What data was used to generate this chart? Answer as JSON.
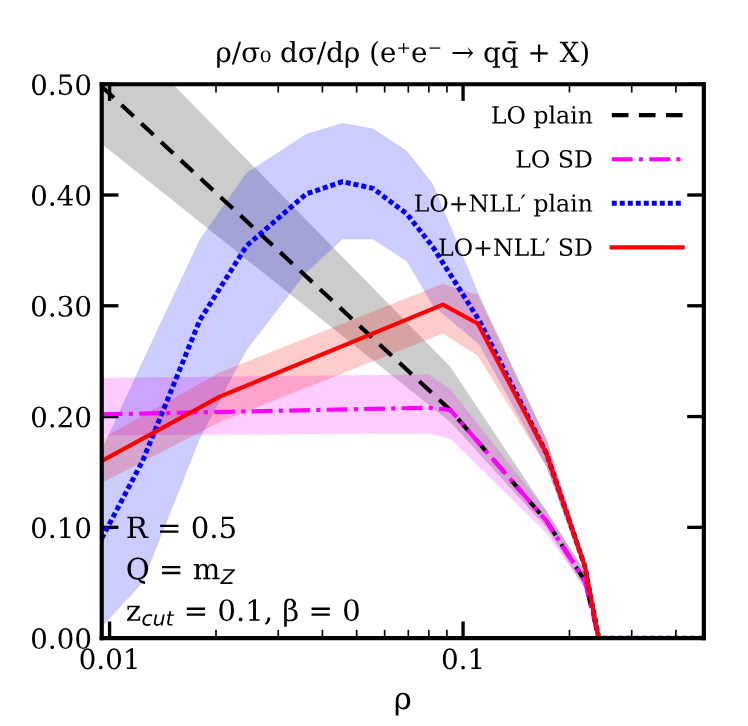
{
  "chart_data": {
    "type": "line",
    "title": "ρ/σ₀ dσ/dρ (e⁺e⁻ → qq̄ + X)",
    "xlabel": "ρ",
    "log": "x",
    "xlim": [
      0.0095,
      0.48
    ],
    "xticks": [
      0.01,
      0.1
    ],
    "ylim": [
      0,
      0.5
    ],
    "yticks": [
      {
        "value": 0,
        "label": "0.00"
      },
      {
        "value": 0.1,
        "label": "0.10"
      },
      {
        "value": 0.2,
        "label": "0.20"
      },
      {
        "value": 0.3,
        "label": "0.30"
      },
      {
        "value": 0.4,
        "label": "0.40"
      },
      {
        "value": 0.5,
        "label": "0.50"
      }
    ],
    "grid": false,
    "legend": "top right",
    "annotations": [
      "R = 0.5",
      "Q = m$_{Z}$",
      "z$_{cut}$ = 0.1, β = 0"
    ],
    "series": [
      {
        "name": "LO plain",
        "color": "#000000",
        "line_style": "dashed",
        "x": [
          0.0095,
          0.0151,
          0.092,
          0.172,
          0.221,
          0.242,
          0.48
        ],
        "values": [
          0.498,
          0.438,
          0.206,
          0.106,
          0.052,
          0,
          0
        ],
        "lower": [
          0.446,
          0.395,
          0.195,
          0.1,
          0.045,
          0,
          0
        ],
        "upper": [
          0.5,
          0.5,
          0.245,
          0.115,
          0.06,
          0,
          0
        ]
      },
      {
        "name": "LO SD",
        "color": "#ff00ff",
        "line_style": "dashdot",
        "x": [
          0.0095,
          0.08,
          0.092,
          0.172,
          0.221,
          0.242,
          0.48
        ],
        "values": [
          0.202,
          0.208,
          0.206,
          0.106,
          0.052,
          0,
          0
        ],
        "lower": [
          0.183,
          0.185,
          0.18,
          0.095,
          0.045,
          0,
          0
        ],
        "upper": [
          0.235,
          0.238,
          0.225,
          0.115,
          0.06,
          0,
          0
        ]
      },
      {
        "name": "LO+NLL′ plain",
        "color": "#0000ff",
        "line_style": "dotted",
        "x": [
          0.0095,
          0.0124,
          0.018,
          0.0244,
          0.036,
          0.0456,
          0.0556,
          0.0693,
          0.0822,
          0.111,
          0.172,
          0.221,
          0.242,
          0.48
        ],
        "values": [
          0.09,
          0.16,
          0.287,
          0.354,
          0.401,
          0.412,
          0.406,
          0.383,
          0.353,
          0.287,
          0.167,
          0.065,
          0,
          0
        ],
        "lower": [
          0.01,
          0.05,
          0.18,
          0.26,
          0.33,
          0.36,
          0.36,
          0.34,
          0.3,
          0.265,
          0.155,
          0.06,
          0,
          0
        ],
        "upper": [
          0.17,
          0.25,
          0.36,
          0.42,
          0.455,
          0.465,
          0.46,
          0.44,
          0.41,
          0.31,
          0.18,
          0.07,
          0,
          0
        ]
      },
      {
        "name": "LO+NLL′ SD",
        "color": "#ff0000",
        "line_style": "solid",
        "x": [
          0.0095,
          0.0205,
          0.0877,
          0.11,
          0.172,
          0.221,
          0.242,
          0.48
        ],
        "values": [
          0.16,
          0.218,
          0.301,
          0.284,
          0.167,
          0.065,
          0,
          0
        ],
        "lower": [
          0.14,
          0.195,
          0.275,
          0.255,
          0.155,
          0.06,
          0,
          0
        ],
        "upper": [
          0.18,
          0.24,
          0.32,
          0.31,
          0.18,
          0.07,
          0,
          0
        ]
      }
    ]
  }
}
